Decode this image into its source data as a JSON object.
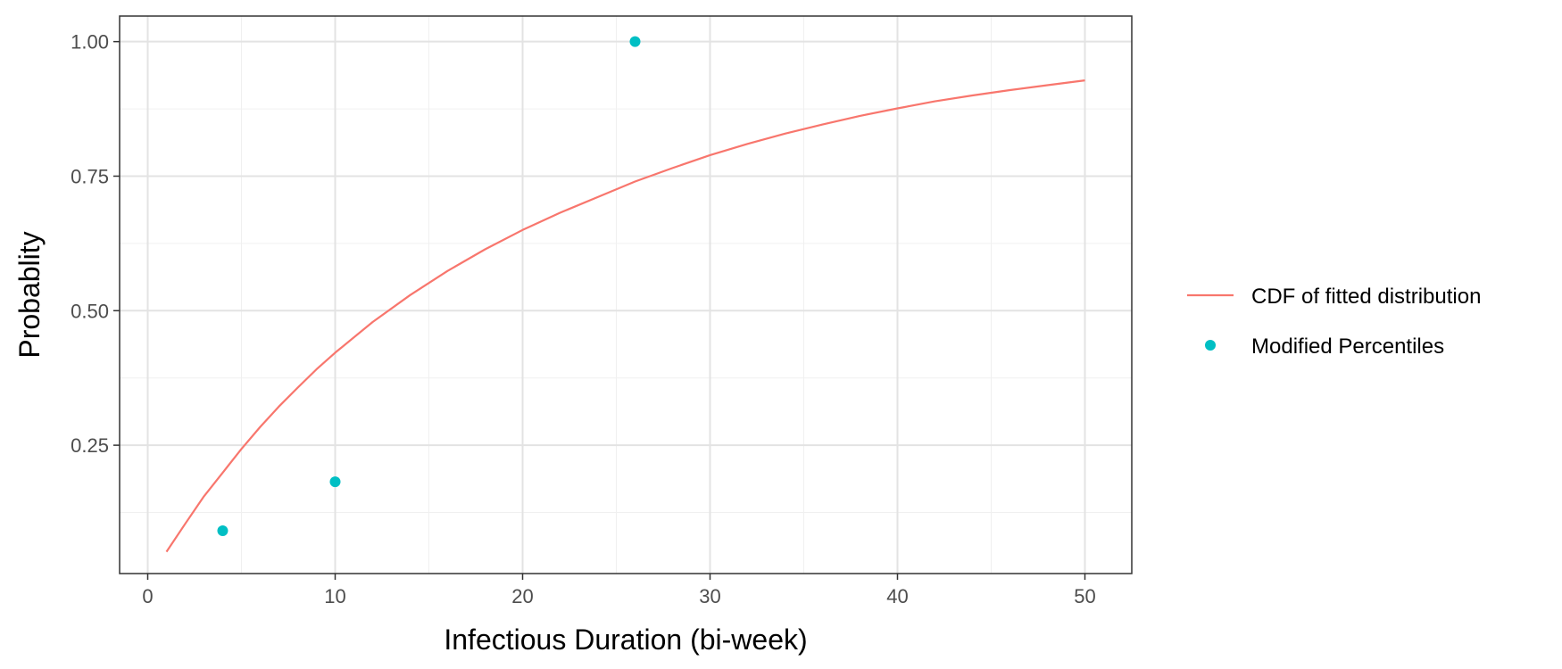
{
  "chart_data": {
    "type": "line",
    "xlabel": "Infectious Duration (bi-week)",
    "ylabel": "Probablity",
    "xlim": [
      -1.5,
      52.5
    ],
    "ylim": [
      0.0115,
      1.0475
    ],
    "x_ticks": [
      0,
      10,
      20,
      30,
      40,
      50
    ],
    "x_tick_labels": [
      "0",
      "10",
      "20",
      "30",
      "40",
      "50"
    ],
    "y_ticks": [
      0.25,
      0.5,
      0.75,
      1.0
    ],
    "y_tick_labels": [
      "0.25",
      "0.50",
      "0.75",
      "1.00"
    ],
    "grid": true,
    "legend_position": "right",
    "series": [
      {
        "name": "CDF of fitted distribution",
        "type": "line",
        "color": "#F8766D",
        "x": [
          1,
          2,
          3,
          4,
          5,
          6,
          7,
          8,
          9,
          10,
          12,
          14,
          16,
          18,
          20,
          22,
          24,
          26,
          28,
          30,
          32,
          34,
          36,
          38,
          40,
          42,
          44,
          46,
          48,
          50
        ],
        "y": [
          0.052,
          0.104,
          0.155,
          0.199,
          0.243,
          0.284,
          0.322,
          0.357,
          0.391,
          0.422,
          0.479,
          0.529,
          0.574,
          0.614,
          0.65,
          0.682,
          0.711,
          0.74,
          0.765,
          0.789,
          0.81,
          0.829,
          0.846,
          0.862,
          0.876,
          0.889,
          0.9,
          0.91,
          0.919,
          0.928
        ]
      },
      {
        "name": "Modified Percentiles",
        "type": "scatter",
        "color": "#00BFC4",
        "x": [
          4,
          10,
          26
        ],
        "y": [
          0.091,
          0.182,
          1.0
        ]
      }
    ]
  }
}
